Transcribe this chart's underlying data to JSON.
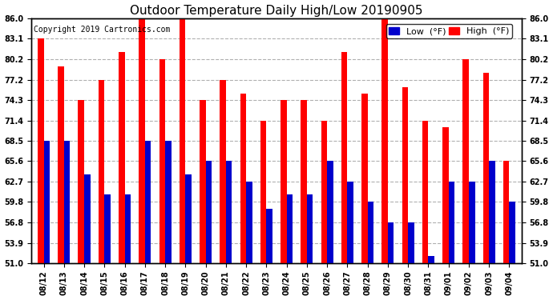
{
  "title": "Outdoor Temperature Daily High/Low 20190905",
  "copyright": "Copyright 2019 Cartronics.com",
  "legend_low": "Low  (°F)",
  "legend_high": "High  (°F)",
  "dates": [
    "08/12",
    "08/13",
    "08/14",
    "08/15",
    "08/16",
    "08/17",
    "08/18",
    "08/19",
    "08/20",
    "08/21",
    "08/22",
    "08/23",
    "08/24",
    "08/25",
    "08/26",
    "08/27",
    "08/28",
    "08/29",
    "08/30",
    "08/31",
    "09/01",
    "09/02",
    "09/03",
    "09/04"
  ],
  "highs": [
    83.1,
    79.2,
    74.3,
    77.2,
    81.2,
    86.0,
    80.2,
    86.0,
    74.3,
    77.2,
    75.2,
    71.4,
    74.3,
    74.3,
    71.4,
    81.2,
    75.2,
    86.0,
    76.2,
    71.4,
    70.4,
    80.2,
    78.2,
    65.6
  ],
  "lows": [
    68.5,
    68.5,
    63.7,
    60.8,
    60.8,
    68.5,
    68.5,
    63.7,
    65.6,
    65.6,
    62.7,
    58.8,
    60.8,
    60.8,
    65.6,
    62.7,
    59.8,
    56.8,
    56.8,
    52.0,
    62.7,
    62.7,
    65.6,
    59.8
  ],
  "bar_width": 0.3,
  "ylim_low": 51.0,
  "ylim_high": 86.0,
  "yticks": [
    51.0,
    53.9,
    56.8,
    59.8,
    62.7,
    65.6,
    68.5,
    71.4,
    74.3,
    77.2,
    80.2,
    83.1,
    86.0
  ],
  "high_color": "#ff0000",
  "low_color": "#0000cc",
  "bg_color": "#ffffff",
  "grid_color": "#b0b0b0",
  "title_fontsize": 11,
  "copyright_fontsize": 7,
  "tick_fontsize": 7,
  "legend_fontsize": 8
}
